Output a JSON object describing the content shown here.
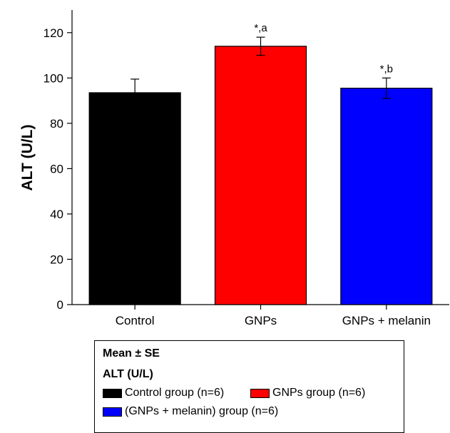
{
  "chart_data": {
    "type": "bar",
    "categories": [
      "Control",
      "GNPs",
      "GNPs + melanin"
    ],
    "values": [
      93.5,
      114,
      95.5
    ],
    "errors": [
      6,
      4,
      4.5
    ],
    "colors": [
      "#000000",
      "#ff0000",
      "#0000ff"
    ],
    "annotations": [
      "",
      "*,a",
      "*,b"
    ],
    "ylabel": "ALT (U/L)",
    "ylim": [
      0,
      130
    ],
    "yticks": [
      0,
      20,
      40,
      60,
      80,
      100,
      120
    ],
    "grid": false,
    "legend_position": "bottom"
  },
  "legend": {
    "title": "Mean ± SE",
    "subtitle": "ALT (U/L)",
    "entries": [
      {
        "label": "Control group (n=6)",
        "color": "#000000"
      },
      {
        "label": "GNPs group (n=6)",
        "color": "#ff0000"
      },
      {
        "label": "(GNPs + melanin) group (n=6)",
        "color": "#0000ff"
      }
    ]
  }
}
